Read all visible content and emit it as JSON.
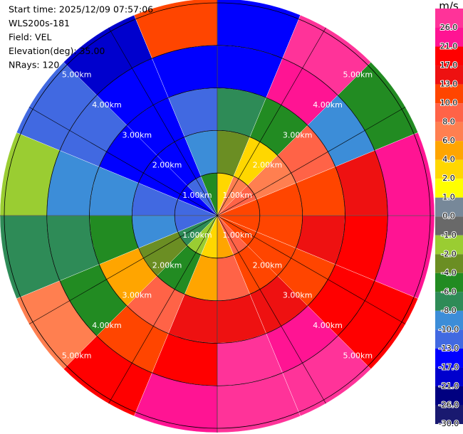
{
  "chart_data": {
    "type": "ppi",
    "header": [
      "Start time: 2025/12/09 07:57:06",
      "WLS200s-181",
      "Field: VEL",
      "Elevation(deg): 35.00",
      "NRays: 120"
    ],
    "azimuth_bins": [
      0,
      22.5,
      45,
      67.5,
      90,
      112.5,
      135,
      157.5,
      180,
      202.5,
      225,
      247.5,
      270,
      292.5,
      315,
      337.5,
      360
    ],
    "range_bins": [
      0,
      1,
      2,
      3,
      4,
      5.1
    ],
    "values": [
      [
        2,
        6,
        8,
        10,
        10,
        10,
        8,
        4,
        2,
        -2,
        -8,
        -13,
        -13,
        -17,
        -13,
        -6
      ],
      [
        -4,
        2,
        6,
        10,
        10,
        10,
        10,
        8,
        4,
        -6,
        -4,
        -10,
        -13,
        -17,
        -17,
        -10
      ],
      [
        -8,
        -6,
        8,
        10,
        13,
        10,
        13,
        13,
        13,
        8,
        4,
        -6,
        -10,
        -17,
        -17,
        -13
      ],
      [
        -17,
        21,
        -10,
        13,
        17,
        17,
        21,
        26,
        17,
        10,
        -6,
        -8,
        -10,
        -13,
        -17,
        -17
      ],
      [
        -17,
        26,
        -6,
        21,
        21,
        17,
        26,
        26,
        21,
        17,
        6,
        -8,
        -2,
        -13,
        -21,
        10
      ]
    ],
    "rlim": [
      0,
      5.1
    ],
    "range_rings": [
      {
        "value": 1,
        "label": "1.00km"
      },
      {
        "value": 2,
        "label": "2.00km"
      },
      {
        "value": 3,
        "label": "3.00km"
      },
      {
        "value": 4,
        "label": "4.00km"
      },
      {
        "value": 5,
        "label": "5.00km"
      }
    ],
    "colorbar": {
      "unit": "m/s",
      "ticks": [
        {
          "value": 26,
          "label": "26.0"
        },
        {
          "value": 21,
          "label": "21.0"
        },
        {
          "value": 17,
          "label": "17.0"
        },
        {
          "value": 13,
          "label": "13.0"
        },
        {
          "value": 10,
          "label": "10.0"
        },
        {
          "value": 8,
          "label": "8.0"
        },
        {
          "value": 6,
          "label": "6.0"
        },
        {
          "value": 4,
          "label": "4.0"
        },
        {
          "value": 2,
          "label": "2.0"
        },
        {
          "value": 1,
          "label": "1.0"
        },
        {
          "value": 0,
          "label": "0.0"
        },
        {
          "value": -1,
          "label": "-1.0"
        },
        {
          "value": -2,
          "label": "-2.0"
        },
        {
          "value": -4,
          "label": "-4.0"
        },
        {
          "value": -6,
          "label": "-6.0"
        },
        {
          "value": -8,
          "label": "-8.0"
        },
        {
          "value": -10,
          "label": "-10.0"
        },
        {
          "value": -13,
          "label": "-13.0"
        },
        {
          "value": -17,
          "label": "-17.0"
        },
        {
          "value": -21,
          "label": "-21.0"
        },
        {
          "value": -26,
          "label": "-26.0"
        },
        {
          "value": -30,
          "label": "-30.0"
        }
      ],
      "colors": [
        "#ff3399",
        "#ff1493",
        "#ff0000",
        "#ee1111",
        "#ff4500",
        "#ff6347",
        "#ff7f50",
        "#ffa500",
        "#ffd700",
        "#ffff00",
        "#778899",
        "#696969",
        "#9acd32",
        "#6b8e23",
        "#228b22",
        "#2e8b57",
        "#3c8dd8",
        "#4169e1",
        "#0000ff",
        "#0000cd",
        "#000080",
        "#191970"
      ]
    }
  }
}
